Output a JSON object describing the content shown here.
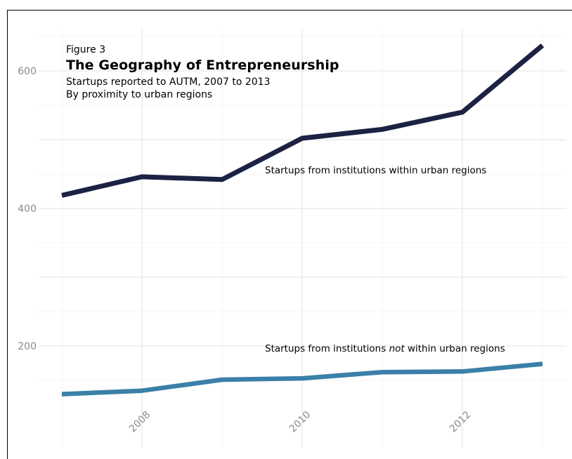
{
  "caption": {
    "kicker": "Figure 3",
    "title": "The Geography of Entrepreneurship",
    "subtitle_line1": "Startups reported to AUTM, 2007 to 2013",
    "subtitle_line2": "By proximity to urban regions"
  },
  "annotations": {
    "urban": "Startups from institutions within urban regions",
    "nonurban_before": "Startups from institutions ",
    "nonurban_em": "not",
    "nonurban_after": " within urban regions"
  },
  "chart_data": {
    "type": "line",
    "x": [
      2007,
      2008,
      2009,
      2010,
      2011,
      2012,
      2013
    ],
    "series": [
      {
        "key": "urban",
        "values": [
          419,
          446,
          442,
          502,
          515,
          540,
          637
        ],
        "color": "#1c2244"
      },
      {
        "key": "nonurban",
        "values": [
          130,
          135,
          151,
          153,
          162,
          163,
          174
        ],
        "color": "#3a80a8"
      }
    ],
    "xlim": [
      2007,
      2013
    ],
    "ylim": [
      130,
      637
    ],
    "y_ticks": [
      200,
      400,
      600
    ],
    "x_ticks": [
      2008,
      2010,
      2012
    ],
    "grid": true,
    "legend": "none"
  }
}
